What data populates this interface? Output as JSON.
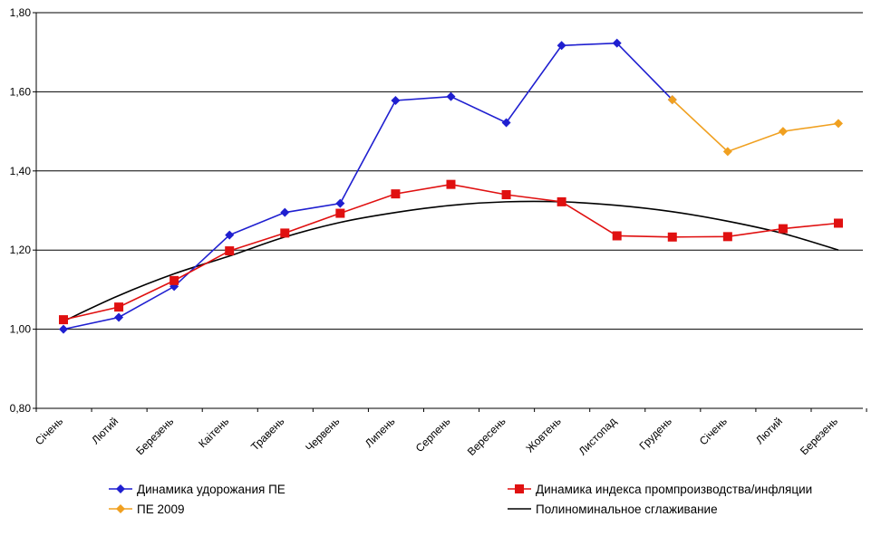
{
  "chart_data": {
    "type": "line",
    "categories": [
      "Січень",
      "Лютий",
      "Березень",
      "Каітень",
      "Травень",
      "Червень",
      "Липень",
      "Серпень",
      "Вересень",
      "Жовтень",
      "Листопад",
      "Грудень",
      "Січень",
      "Лютий",
      "Березень"
    ],
    "ylim": [
      0.8,
      1.8
    ],
    "yticks": [
      "0,80",
      "1,00",
      "1,20",
      "1,40",
      "1,60",
      "1,80"
    ],
    "grid": true,
    "legend_position": "bottom",
    "series": [
      {
        "name": "Динамика удорожания ПЕ",
        "color": "#1f1fd0",
        "marker": "diamond",
        "values": [
          1.0,
          1.03,
          1.108,
          1.238,
          1.295,
          1.318,
          1.578,
          1.588,
          1.522,
          1.717,
          1.723,
          1.58,
          null,
          null,
          null
        ]
      },
      {
        "name": "Динамика индекса промпроизводства/инфляции",
        "color": "#e01010",
        "marker": "square",
        "values": [
          1.024,
          1.056,
          1.123,
          1.198,
          1.243,
          1.293,
          1.342,
          1.366,
          1.34,
          1.322,
          1.236,
          1.233,
          1.234,
          1.254,
          1.268
        ]
      },
      {
        "name": "ПЕ 2009",
        "color": "#f0a020",
        "marker": "diamond",
        "values": [
          null,
          null,
          null,
          null,
          null,
          null,
          null,
          null,
          null,
          null,
          null,
          1.58,
          1.449,
          1.5,
          1.52
        ]
      },
      {
        "name": "Полиноминальное сглаживание",
        "color": "#000000",
        "marker": "none",
        "values": [
          1.02,
          1.085,
          1.14,
          1.185,
          1.233,
          1.27,
          1.295,
          1.313,
          1.322,
          1.322,
          1.313,
          1.297,
          1.273,
          1.242,
          1.2
        ]
      }
    ]
  }
}
